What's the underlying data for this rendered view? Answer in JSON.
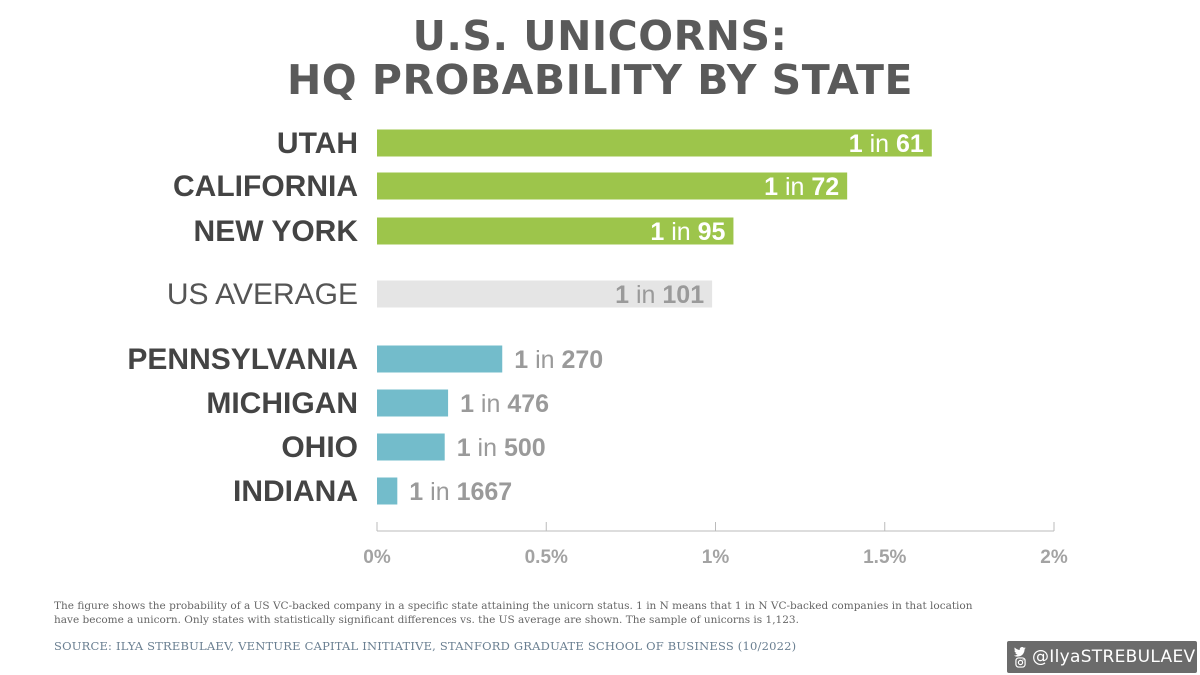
{
  "title_line1": "U.S. UNICORNS:",
  "title_line2": "HQ PROBABILITY BY STATE",
  "chart_data": {
    "type": "bar",
    "orientation": "horizontal",
    "categories": [
      "UTAH",
      "CALIFORNIA",
      "NEW YORK",
      "US AVERAGE",
      "PENNSYLVANIA",
      "MICHIGAN",
      "OHIO",
      "INDIANA"
    ],
    "values": [
      1.639,
      1.389,
      1.053,
      0.99,
      0.37,
      0.21,
      0.2,
      0.06
    ],
    "data_labels": [
      {
        "one": "1",
        "in": " in ",
        "n": "61"
      },
      {
        "one": "1",
        "in": " in ",
        "n": "72"
      },
      {
        "one": "1",
        "in": " in ",
        "n": "95"
      },
      {
        "one": "1",
        "in": " in ",
        "n": "101"
      },
      {
        "one": "1",
        "in": " in ",
        "n": "270"
      },
      {
        "one": "1",
        "in": " in ",
        "n": "476"
      },
      {
        "one": "1",
        "in": " in ",
        "n": "500"
      },
      {
        "one": "1",
        "in": " in ",
        "n": "1667"
      }
    ],
    "groups": [
      "above",
      "above",
      "above",
      "average",
      "below",
      "below",
      "below",
      "below"
    ],
    "colors": {
      "above": "#9dc54b",
      "average": "#e5e5e5",
      "below": "#73bccb"
    },
    "xticks": [
      0,
      0.5,
      1,
      1.5,
      2
    ],
    "xtick_labels": [
      "0%",
      "0.5%",
      "1%",
      "1.5%",
      "2%"
    ],
    "xlim": [
      0,
      2
    ],
    "unit": "%",
    "grid": false
  },
  "note": "The figure shows the probability of a US VC-backed company in a specific state attaining the unicorn status. 1 in N means that 1 in N VC-backed companies in that location have become a unicorn. Only states with statistically significant differences vs. the US average are shown. The sample of unicorns is 1,123.",
  "source": "SOURCE: ILYA STREBULAEV, VENTURE CAPITAL INITIATIVE, STANFORD GRADUATE SCHOOL OF BUSINESS (10/2022)",
  "social_handle": "@IlyaSTREBULAEV",
  "social_icons": [
    "twitter-icon",
    "instagram-icon"
  ]
}
